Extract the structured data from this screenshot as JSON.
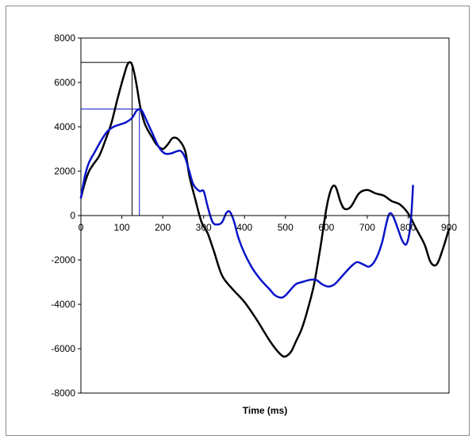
{
  "chart_data": {
    "type": "line",
    "title": "",
    "xlabel": "Time (ms)",
    "ylabel": "",
    "xlim": [
      0,
      900
    ],
    "ylim": [
      -8000,
      8000
    ],
    "x_ticks": [
      0,
      100,
      200,
      300,
      400,
      500,
      600,
      700,
      800,
      900
    ],
    "y_ticks": [
      8000,
      6000,
      4000,
      2000,
      0,
      -2000,
      -4000,
      -6000,
      -8000
    ],
    "grid": false,
    "legend": "none",
    "series": [
      {
        "color": "#000000",
        "x": [
          0,
          10,
          20,
          30,
          45,
          60,
          75,
          90,
          105,
          115,
          125,
          135,
          145,
          155,
          165,
          175,
          185,
          200,
          212,
          225,
          240,
          255,
          265,
          280,
          295,
          310,
          325,
          345,
          370,
          400,
          430,
          460,
          480,
          495,
          505,
          515,
          525,
          540,
          555,
          570,
          585,
          600,
          610,
          618,
          625,
          635,
          645,
          660,
          680,
          700,
          720,
          740,
          760,
          780,
          800,
          820,
          840,
          855,
          870,
          885,
          900
        ],
        "y": [
          800,
          1500,
          2000,
          2300,
          2700,
          3400,
          4200,
          5300,
          6300,
          6850,
          6800,
          6000,
          4900,
          4200,
          3800,
          3500,
          3200,
          3000,
          3200,
          3500,
          3400,
          2900,
          1800,
          700,
          -300,
          -800,
          -1600,
          -2700,
          -3300,
          -3900,
          -4700,
          -5600,
          -6100,
          -6350,
          -6300,
          -6100,
          -5700,
          -5100,
          -4200,
          -3100,
          -1500,
          300,
          1100,
          1350,
          1200,
          600,
          300,
          400,
          1000,
          1150,
          1000,
          900,
          650,
          500,
          100,
          -600,
          -1300,
          -2100,
          -2200,
          -1500,
          -600
        ]
      },
      {
        "color": "#0a14c8",
        "x": [
          0,
          10,
          20,
          35,
          50,
          65,
          80,
          95,
          110,
          125,
          135,
          143,
          150,
          160,
          175,
          190,
          205,
          220,
          235,
          245,
          255,
          265,
          275,
          290,
          300,
          310,
          322,
          335,
          345,
          355,
          362,
          368,
          375,
          385,
          400,
          420,
          440,
          460,
          475,
          490,
          500,
          510,
          525,
          540,
          560,
          575,
          590,
          605,
          620,
          640,
          660,
          675,
          690,
          705,
          720,
          735,
          745,
          752,
          758,
          765,
          775,
          785,
          795,
          803,
          808,
          812
        ],
        "y": [
          800,
          1800,
          2400,
          2900,
          3400,
          3800,
          4000,
          4100,
          4200,
          4400,
          4700,
          4800,
          4700,
          4300,
          3700,
          3100,
          2800,
          2800,
          2900,
          2900,
          2600,
          2000,
          1400,
          1100,
          1100,
          400,
          -300,
          -400,
          -300,
          100,
          200,
          50,
          -300,
          -1000,
          -1700,
          -2400,
          -2900,
          -3300,
          -3600,
          -3700,
          -3600,
          -3400,
          -3100,
          -3000,
          -2900,
          -2900,
          -3100,
          -3200,
          -3100,
          -2700,
          -2300,
          -2100,
          -2200,
          -2300,
          -2000,
          -1300,
          -500,
          0,
          100,
          -100,
          -600,
          -1100,
          -1300,
          -800,
          100,
          1350
        ]
      }
    ],
    "annotations": [
      {
        "series": 0,
        "x": 125,
        "y": 6900
      },
      {
        "series": 1,
        "x": 143,
        "y": 4800
      }
    ]
  }
}
